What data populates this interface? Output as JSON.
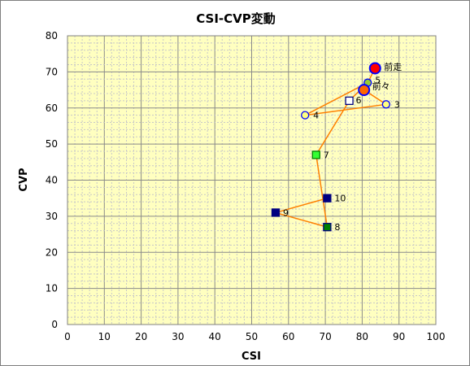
{
  "chart_data": {
    "type": "scatter",
    "title": "CSI-CVP変動",
    "xlabel": "CSI",
    "ylabel": "CVP",
    "xlim": [
      0,
      100
    ],
    "ylim": [
      0,
      80
    ],
    "x_ticks": [
      "0",
      "10",
      "20",
      "30",
      "40",
      "50",
      "60",
      "70",
      "80",
      "90",
      "100"
    ],
    "y_ticks": [
      "0",
      "10",
      "20",
      "30",
      "40",
      "50",
      "60",
      "70",
      "80"
    ],
    "grid": true,
    "plot_background": "#ffffc0",
    "line_color": "#ff8000",
    "points": [
      {
        "label": "前走",
        "x": 83.5,
        "y": 71,
        "marker": "circle",
        "fill": "#ff0000",
        "stroke": "#0000ff",
        "size": "large"
      },
      {
        "label": "前々",
        "x": 80.5,
        "y": 65,
        "marker": "circle",
        "fill": "#ff6600",
        "stroke": "#0000ff",
        "size": "large"
      },
      {
        "label": "3",
        "x": 86.5,
        "y": 61,
        "marker": "circle",
        "fill": "#ffff80",
        "stroke": "#0000ff",
        "size": "small"
      },
      {
        "label": "4",
        "x": 64.5,
        "y": 58,
        "marker": "circle",
        "fill": "#ffff80",
        "stroke": "#0000ff",
        "size": "small"
      },
      {
        "label": "5",
        "x": 81.5,
        "y": 67,
        "marker": "circle",
        "fill": "#99cc33",
        "stroke": "#0000ff",
        "size": "small"
      },
      {
        "label": "6",
        "x": 76.5,
        "y": 62,
        "marker": "square",
        "fill": "#ffffff",
        "stroke": "#000080",
        "size": "small"
      },
      {
        "label": "7",
        "x": 67.5,
        "y": 47,
        "marker": "square",
        "fill": "#33ff33",
        "stroke": "#008000",
        "size": "small"
      },
      {
        "label": "8",
        "x": 70.5,
        "y": 27,
        "marker": "square",
        "fill": "#008000",
        "stroke": "#000080",
        "size": "small"
      },
      {
        "label": "9",
        "x": 56.5,
        "y": 31,
        "marker": "square",
        "fill": "#000080",
        "stroke": "#000080",
        "size": "small"
      },
      {
        "label": "10",
        "x": 70.5,
        "y": 35,
        "marker": "square",
        "fill": "#000080",
        "stroke": "#000080",
        "size": "small"
      }
    ]
  }
}
